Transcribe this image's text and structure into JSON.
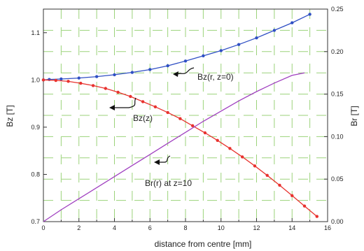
{
  "chart_data": {
    "type": "line",
    "xlabel": "distance from centre [mm]",
    "ylabel_left": "Bz [T]",
    "ylabel_right": "Br [T]",
    "xlim": [
      0,
      16
    ],
    "ylim_left": [
      0.7,
      1.15
    ],
    "ylim_right": [
      0.0,
      0.25
    ],
    "x_ticks": [
      "0",
      "2",
      "4",
      "6",
      "8",
      "10",
      "12",
      "14",
      "16"
    ],
    "y_left_ticks": [
      "0.7",
      "0.8",
      "0.9",
      "1.0",
      "1.1"
    ],
    "y_right_ticks": [
      "0.00",
      "0.05",
      "0.10",
      "0.15",
      "0.20",
      "0.25"
    ],
    "grid": "dashed-green",
    "colors": {
      "bz_r": "#2f4fc4",
      "bz_z": "#e8322e",
      "br_r": "#a040c0",
      "grid": "#9bd27a",
      "axis": "#333333"
    },
    "series": [
      {
        "name": "Bz(r, z=0)",
        "axis": "left",
        "markers": true,
        "x": [
          0,
          0.33,
          1.0,
          2.0,
          3.0,
          4.0,
          5.0,
          6.0,
          7.0,
          8.0,
          9.0,
          10.0,
          11.0,
          12.0,
          13.0,
          14.0,
          15.0
        ],
        "y": [
          1.0,
          1.001,
          1.002,
          1.004,
          1.007,
          1.011,
          1.016,
          1.022,
          1.03,
          1.04,
          1.051,
          1.062,
          1.075,
          1.089,
          1.105,
          1.121,
          1.139
        ]
      },
      {
        "name": "Bz(z)",
        "axis": "left",
        "markers": true,
        "x": [
          0,
          0.7,
          1.4,
          2.1,
          2.8,
          3.5,
          4.2,
          4.9,
          5.6,
          6.3,
          7.0,
          7.7,
          8.4,
          9.1,
          9.8,
          10.5,
          11.2,
          11.9,
          12.6,
          13.3,
          14.0,
          14.7,
          15.4
        ],
        "y": [
          1.0,
          0.999,
          0.997,
          0.993,
          0.988,
          0.982,
          0.974,
          0.965,
          0.954,
          0.943,
          0.931,
          0.918,
          0.903,
          0.888,
          0.872,
          0.855,
          0.837,
          0.818,
          0.798,
          0.777,
          0.755,
          0.733,
          0.711
        ]
      },
      {
        "name": "Br(r) at z=10",
        "axis": "right",
        "markers": false,
        "x": [
          0,
          1,
          2,
          3,
          4,
          5,
          6,
          7,
          8,
          9,
          10,
          11,
          12,
          13,
          14,
          14.7
        ],
        "y": [
          0.0,
          0.014,
          0.027,
          0.04,
          0.053,
          0.066,
          0.079,
          0.092,
          0.105,
          0.118,
          0.13,
          0.142,
          0.153,
          0.163,
          0.172,
          0.175
        ]
      }
    ],
    "annotations": [
      {
        "text": "Bz(r, z=0)",
        "series": "Bz(r, z=0)"
      },
      {
        "text": "Bz(z)",
        "series": "Bz(z)"
      },
      {
        "text": "Br(r) at z=10",
        "series": "Br(r) at z=10"
      }
    ]
  }
}
